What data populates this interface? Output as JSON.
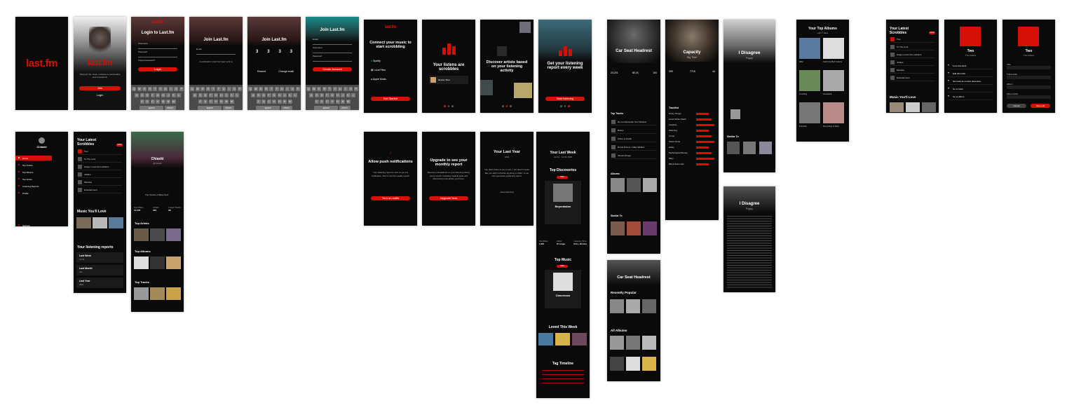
{
  "brand": {
    "logo": "last.fm",
    "accent": "#d51007"
  },
  "onboarding": {
    "splash_intro": "Discover the music, continue to personalize your experience",
    "join_button": "Join",
    "login_button": "Login"
  },
  "login": {
    "title": "Login to Last.fm",
    "username_label": "Username",
    "password_label": "Password",
    "forgot": "Forgot password?",
    "submit": "Login"
  },
  "join": {
    "title": "Join Last.fm",
    "email_label": "Email",
    "verify_text": "A verification code has been sent to",
    "code_digits": [
      "3",
      "3",
      "3",
      "3"
    ],
    "resend": "Resend",
    "change_email": "Change email",
    "create_button": "Create Account",
    "username_label": "Username",
    "password_label": "Password"
  },
  "keyboard": {
    "rows": [
      [
        "Q",
        "W",
        "E",
        "R",
        "T",
        "Y",
        "U",
        "I",
        "O",
        "P"
      ],
      [
        "A",
        "S",
        "D",
        "F",
        "G",
        "H",
        "J",
        "K",
        "L"
      ],
      [
        "Z",
        "X",
        "C",
        "V",
        "B",
        "N",
        "M"
      ]
    ],
    "space": "space",
    "return": "return"
  },
  "intro": [
    {
      "title": "Connect your music to start scrobbling",
      "items": [
        "Spotify",
        "Local Files",
        "Apple Music"
      ],
      "button": "Get Started"
    },
    {
      "title": "Your listens are scrobbles",
      "track": "Dancer Shai"
    },
    {
      "title": "Discover artists based on your listening activity"
    },
    {
      "title": "Get your listening report every week",
      "button": "Start listening"
    }
  ],
  "menu": {
    "user": "Chiaski",
    "items": [
      "Home",
      "Top Tracks",
      "Top Albums",
      "Top Artists",
      "Listening Reports",
      "Profile",
      "Settings",
      "Logout"
    ]
  },
  "home": {
    "scrobbles_title": "Your Latest Scrobbles",
    "now_badge": "NOW",
    "tracks": [
      "Two",
      "To The Limit",
      "Happy Loves the Lesbians",
      "Jubilee",
      "Miracles",
      "Entertainment"
    ],
    "music_title": "Music You'll Love",
    "music_items": [
      "Phantom Jasmine",
      "Sun Riot",
      "Stretch"
    ],
    "reports_title": "Your listening reports",
    "reports": [
      {
        "label": "Last Week",
        "sub": "Jul 31"
      },
      {
        "label": "Last Month",
        "sub": "Jan"
      },
      {
        "label": "Last Year",
        "sub": "2022"
      }
    ]
  },
  "profile": {
    "name": "Chiaski",
    "handle": "@chiaski",
    "now_playing": "The Ghosts of Beta Nyck",
    "stats_labels": [
      "Scrobbles",
      "Artists",
      "Loved Tracks"
    ],
    "stats_values": [
      "14,378",
      "304",
      "98"
    ],
    "sections": [
      "Top Artists",
      "Top Albums",
      "Top Tracks"
    ],
    "view_all": "view all"
  },
  "prompts": [
    {
      "title": "Allow push notifications",
      "button": "Turn on notifs",
      "body": "Your listening report is sent to you via notification. Don't miss the weekly report!"
    },
    {
      "title": "Upgrade to see your monthly report",
      "button": "Upgrade Now",
      "body": "Receive a breakdown of your listening history every month, including musical stats and discovering new artists you'll love."
    },
    {
      "title": "Your Last Year",
      "subtitle": "2022",
      "body": "You didn't listen to any music :( Oh dear! It looks like you didn't scrobble anything in 2022, so we can't generate a listening report.",
      "cta": "Keep listening"
    }
  ],
  "weekly": {
    "title": "Your Last Week",
    "range": "Jul 24 - Jul 31 2023",
    "discoveries_title": "Top Discoveries",
    "new_badge": "NEW",
    "featured": "Beyonkalon",
    "stats": [
      "Scrobbles",
      "Artists",
      "Listening Time"
    ],
    "stat_values": [
      "1,304",
      "37 songs",
      "8 hrs, 18 mins"
    ],
    "top_music_title": "Top Music",
    "top_music_item": "Cancerous",
    "loved_title": "Loved This Week",
    "loved_items": [
      "Hallowed Superman",
      "Pleaser",
      "Sweet Like the Hurt"
    ],
    "timeline_title": "Tag Timeline"
  },
  "artist": {
    "name": "Car Seat Headrest",
    "stats": [
      "23,201",
      "80.1K",
      "100"
    ],
    "top_tracks_title": "Top Tracks",
    "tracks": [
      "Do not Reconcile Your Window",
      "Bodys",
      "Sober to Death",
      "Drunk Drivers / Killer Whales",
      "Vincent Drugs"
    ],
    "albums_title": "Albums",
    "albums": [
      "Teens of Denial",
      "Twin Fantasy",
      "Twin Fantasy (Face to Face)"
    ],
    "recent_title": "Recently Popular",
    "all_albums": "All Albums",
    "similar": "Similar To"
  },
  "album": {
    "name": "Capacity",
    "artist": "Big Thief",
    "stats": [
      "300",
      "771K",
      "44"
    ],
    "tracklist_title": "Tracklist",
    "tracks": [
      "Pretty Things",
      "Great White Shark",
      "Capacity",
      "Watering",
      "Coma",
      "Shark Smile",
      "Haley",
      "Mythological Beauty",
      "Mary",
      "Black Diamonds"
    ]
  },
  "track": {
    "name": "I Disagree",
    "artist": "Poppy",
    "similar_title": "Similar To"
  },
  "lyrics": {
    "title": "I Disagree",
    "artist": "Poppy"
  },
  "top_albums": {
    "title": "Your Top Albums",
    "range": "Last 7 days",
    "albums": [
      "Wild",
      "Fetch the Bolt Cutters",
      "Crushing",
      "Hoodwink",
      "Punisher",
      "Everything Is Alive"
    ]
  },
  "scrobbles_panel": {
    "title": "Your Latest Scrobbles",
    "now_badge": "NOW",
    "tracks": [
      "Two",
      "To The Limit",
      "Happy Loves the Lesbians",
      "Jubilee",
      "Miracles",
      "Entertainment"
    ],
    "music_title": "Music You'll Love"
  },
  "track_menu": {
    "title": "Two",
    "artist": "The Antlers",
    "actions": [
      "Love this track",
      "Edit this track",
      "Set track as current obsession",
      "Go to track",
      "Go to album"
    ]
  },
  "track_edit": {
    "title": "Two",
    "artist": "The Antlers",
    "fields": [
      "Title",
      "Track Artist",
      "Album",
      "Album Artist"
    ],
    "cancel": "Cancel",
    "save": "Save edit"
  }
}
